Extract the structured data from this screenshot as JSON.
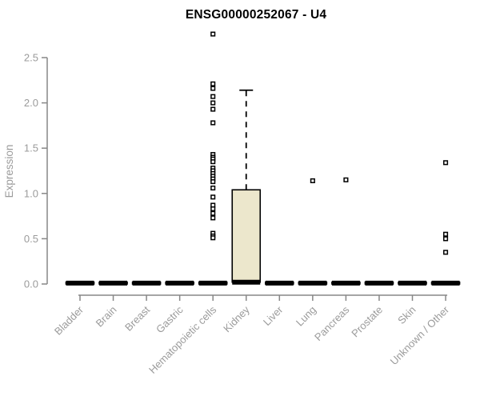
{
  "chart_data": {
    "type": "boxplot",
    "title": "ENSG00000252067 - U4",
    "xlabel": "",
    "ylabel": "Expression",
    "ylim": [
      0,
      2.8
    ],
    "yticks": [
      0,
      0.5,
      1,
      1.5,
      2,
      2.5
    ],
    "grid": false,
    "legend_position": "none",
    "categories": [
      "Bladder",
      "Brain",
      "Breast",
      "Gastric",
      "Hematopoietic cells",
      "Kidney",
      "Liver",
      "Lung",
      "Pancreas",
      "Prostate",
      "Skin",
      "Unknown / Other"
    ],
    "boxes": [
      {
        "category": "Bladder",
        "median": 0.01,
        "q1": 0.0,
        "q3": 0.02,
        "whisker_low": 0.0,
        "whisker_high": 0.02,
        "outliers": []
      },
      {
        "category": "Brain",
        "median": 0.01,
        "q1": 0.0,
        "q3": 0.02,
        "whisker_low": 0.0,
        "whisker_high": 0.02,
        "outliers": []
      },
      {
        "category": "Breast",
        "median": 0.01,
        "q1": 0.0,
        "q3": 0.02,
        "whisker_low": 0.0,
        "whisker_high": 0.02,
        "outliers": []
      },
      {
        "category": "Gastric",
        "median": 0.01,
        "q1": 0.0,
        "q3": 0.02,
        "whisker_low": 0.0,
        "whisker_high": 0.02,
        "outliers": []
      },
      {
        "category": "Hematopoietic cells",
        "median": 0.01,
        "q1": 0.0,
        "q3": 0.02,
        "whisker_low": 0.0,
        "whisker_high": 0.02,
        "outliers": [
          2.76,
          2.21,
          2.16,
          2.07,
          2.0,
          1.93,
          1.78,
          1.43,
          1.4,
          1.38,
          1.35,
          1.28,
          1.25,
          1.22,
          1.19,
          1.16,
          1.13,
          1.06,
          0.96,
          0.87,
          0.83,
          0.78,
          0.73,
          0.56,
          0.53,
          0.51
        ]
      },
      {
        "category": "Kidney",
        "median": 0.02,
        "q1": 0.02,
        "q3": 1.04,
        "whisker_low": 0.02,
        "whisker_high": 2.14,
        "outliers": []
      },
      {
        "category": "Liver",
        "median": 0.01,
        "q1": 0.0,
        "q3": 0.02,
        "whisker_low": 0.0,
        "whisker_high": 0.02,
        "outliers": []
      },
      {
        "category": "Lung",
        "median": 0.01,
        "q1": 0.0,
        "q3": 0.02,
        "whisker_low": 0.0,
        "whisker_high": 0.02,
        "outliers": [
          1.14
        ]
      },
      {
        "category": "Pancreas",
        "median": 0.01,
        "q1": 0.0,
        "q3": 0.02,
        "whisker_low": 0.0,
        "whisker_high": 0.02,
        "outliers": [
          1.15
        ]
      },
      {
        "category": "Prostate",
        "median": 0.01,
        "q1": 0.0,
        "q3": 0.02,
        "whisker_low": 0.0,
        "whisker_high": 0.02,
        "outliers": []
      },
      {
        "category": "Skin",
        "median": 0.01,
        "q1": 0.0,
        "q3": 0.02,
        "whisker_low": 0.0,
        "whisker_high": 0.02,
        "outliers": []
      },
      {
        "category": "Unknown / Other",
        "median": 0.01,
        "q1": 0.0,
        "q3": 0.02,
        "whisker_low": 0.0,
        "whisker_high": 0.02,
        "outliers": [
          1.34,
          0.55,
          0.5,
          0.35
        ]
      }
    ],
    "colors": {
      "box_fill": "#ece7cc",
      "box_stroke": "#000000",
      "whisker": "#000000",
      "outlier_stroke": "#000000",
      "outlier_fill": "#ffffff",
      "axis": "#878787",
      "tick_label": "#9b9b9b",
      "title": "#000000",
      "background": "#ffffff"
    }
  }
}
